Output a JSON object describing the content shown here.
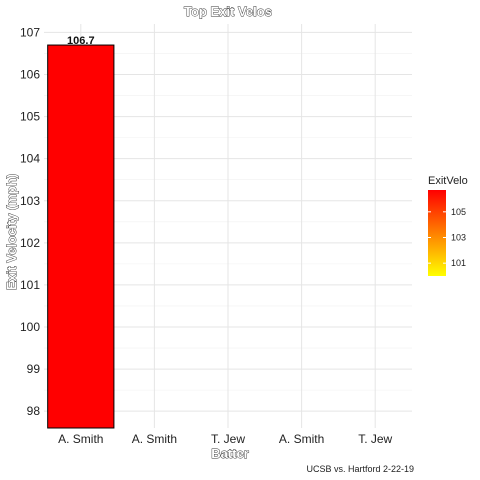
{
  "chart_data": {
    "type": "bar",
    "title": "Top Exit Velos",
    "xlabel": "Batter",
    "ylabel": "Exit Velocity (mph)",
    "caption": "UCSB vs. Hartford 2-22-19",
    "categories": [
      "A. Smith",
      "A. Smith",
      "T. Jew",
      "A. Smith",
      "T. Jew"
    ],
    "values": [
      106.7,
      null,
      null,
      null,
      null
    ],
    "data_labels": [
      "106.7",
      "",
      "",
      "",
      ""
    ],
    "ylim": [
      97.6,
      107.2
    ],
    "yticks": [
      98,
      99,
      100,
      101,
      102,
      103,
      104,
      105,
      106,
      107
    ],
    "grid": true,
    "bar_fill": "#ff0000",
    "bar_outline": "#000000",
    "legend": {
      "title": "ExitVelo",
      "placement": "right",
      "ticks": [
        101,
        103,
        105
      ],
      "range": [
        100.0,
        106.7
      ],
      "color_low": "#ffff00",
      "color_high": "#ff0000"
    }
  }
}
